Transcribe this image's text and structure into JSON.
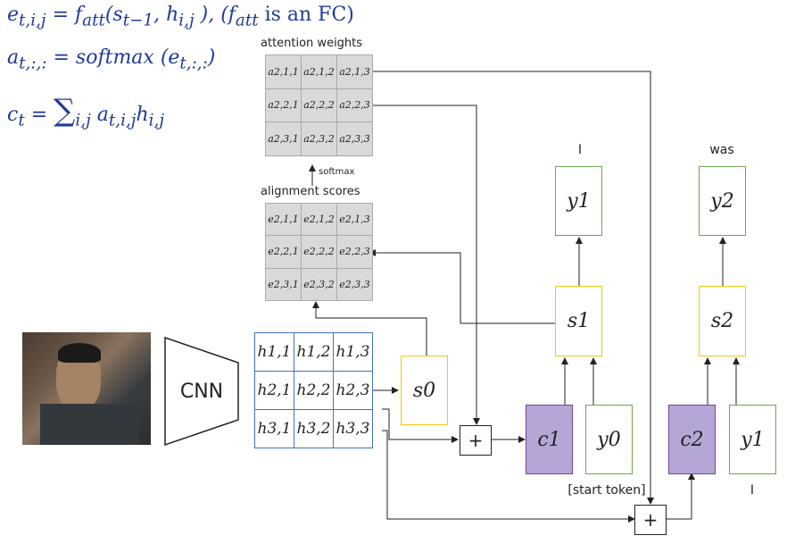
{
  "equations": {
    "line1": "e_{t,i,j} = f_att(s_{t−1}, h_{i,j}), (f_att is an FC)",
    "line1_a": "e",
    "line1_a_sub": "t,i,j",
    "line1_b": " = f",
    "line1_b_sub": "att",
    "line1_c": "(s",
    "line1_c_sub": "t−1",
    "line1_d": ", h",
    "line1_d_sub": "i,j",
    "line1_e": " ),  (f",
    "line1_e_sub": "att",
    "line1_f": " is an FC)",
    "line2_a": "a",
    "line2_a_sub": "t,:,:",
    "line2_b": " = softmax (e",
    "line2_b_sub": "t,:,:",
    "line2_c": ")",
    "line3_a": "c",
    "line3_a_sub": "t",
    "line3_b": " = ",
    "line3_sum": "∑",
    "line3_sum_sub": "i,j",
    "line3_c": " a",
    "line3_c_sub": "t,i,j",
    "line3_d": "h",
    "line3_d_sub": "i,j"
  },
  "attention": {
    "title": "attention weights",
    "cells": [
      [
        "a2,1,1",
        "a2,1,2",
        "a2,1,3"
      ],
      [
        "a2,2,1",
        "a2,2,2",
        "a2,2,3"
      ],
      [
        "a2,3,1",
        "a2,3,2",
        "a2,3,3"
      ]
    ]
  },
  "softmax_label": "softmax",
  "alignment": {
    "title": "alignment scores",
    "cells": [
      [
        "e2,1,1",
        "e2,1,2",
        "e2,1,3"
      ],
      [
        "e2,2,1",
        "e2,2,2",
        "e2,2,3"
      ],
      [
        "e2,3,1",
        "e2,3,2",
        "e2,3,3"
      ]
    ]
  },
  "features": {
    "cells": [
      [
        "h1,1",
        "h1,2",
        "h1,3"
      ],
      [
        "h2,1",
        "h2,2",
        "h2,3"
      ],
      [
        "h3,1",
        "h3,2",
        "h3,3"
      ]
    ]
  },
  "cnn_label": "CNN",
  "states": {
    "s0": "s0",
    "s1": "s1",
    "s2": "s2"
  },
  "contexts": {
    "c1": "c1",
    "c2": "c2"
  },
  "inputs": {
    "y0": "y0",
    "y1": "y1"
  },
  "outputs": {
    "y1": "y1",
    "y2": "y2"
  },
  "words": {
    "out1": "I",
    "out2": "was",
    "start": "[start token]",
    "in2": "I"
  },
  "plus": "+",
  "colors": {
    "equation": "#1f3a9a",
    "feature_border": "#4472c4",
    "state": "#f2c811",
    "io": "#6aa84f",
    "context": "#b4a7d6"
  }
}
